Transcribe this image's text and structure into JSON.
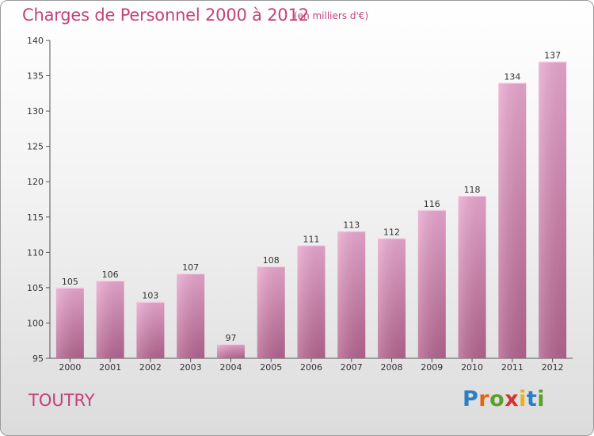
{
  "title": "Charges de Personnel 2000 à 2012",
  "subtitle": "(en milliers d'€)",
  "commune": "TOUTRY",
  "logo": {
    "letters": [
      "P",
      "r",
      "o",
      "x",
      "i",
      "t",
      "i"
    ],
    "colors": [
      "#2a7fc4",
      "#e0651b",
      "#5aa02c",
      "#d8322d",
      "#e8b21a",
      "#2a7fc4",
      "#5aa02c"
    ]
  },
  "colors": {
    "accent": "#c4417a",
    "bar_top": "#eaa8d0",
    "bar_bottom": "#b4648f"
  },
  "chart_data": {
    "type": "bar",
    "categories": [
      "2000",
      "2001",
      "2002",
      "2003",
      "2004",
      "2005",
      "2006",
      "2007",
      "2008",
      "2009",
      "2010",
      "2011",
      "2012"
    ],
    "values": [
      105,
      106,
      103,
      107,
      97,
      108,
      111,
      113,
      112,
      116,
      118,
      134,
      137
    ],
    "ylim": [
      95,
      140
    ],
    "yticks": [
      95,
      100,
      105,
      110,
      115,
      120,
      125,
      130,
      135,
      140
    ],
    "grid": false
  }
}
